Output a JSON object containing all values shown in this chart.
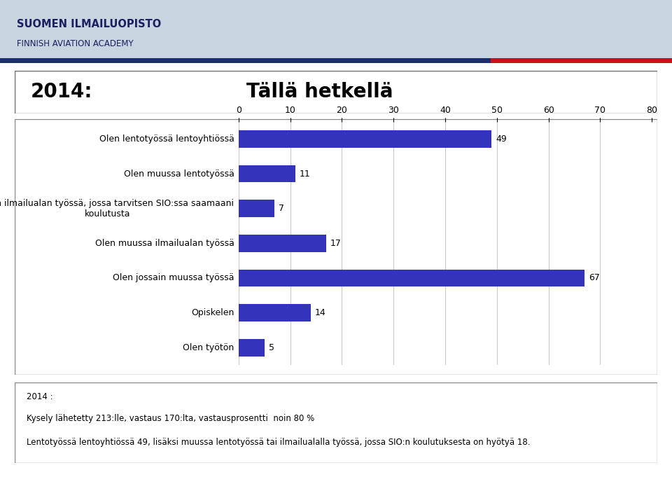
{
  "title_left": "2014:",
  "title_right": "Tällä hetkellä",
  "categories": [
    "Olen lentotyössä lentoyhtiössä",
    "Olen muussa lentotyössä",
    "Olen ilmailualan työssä, jossa tarvitsen SIO:ssa saamaani\nkoulutusta",
    "Olen muussa ilmailualan työssä",
    "Olen jossain muussa työssä",
    "Opiskelen",
    "Olen työtön"
  ],
  "values": [
    49,
    11,
    7,
    17,
    67,
    14,
    5
  ],
  "bar_color": "#3333bb",
  "xlim": [
    0,
    80
  ],
  "xticks": [
    0,
    10,
    20,
    30,
    40,
    50,
    60,
    70,
    80
  ],
  "header_bg": "#c8d4e0",
  "logo_text_line1": "SUOMEN ILMAILUOPISTO",
  "logo_text_line2": "FINNISH AVIATION ACADEMY",
  "footer_line1": "2014 :",
  "footer_line2": "Kysely lähetetty 213:lle, vastaus 170:lta, vastausprosentti  noin 80 %",
  "footer_line3": "Lentotyössä lentoyhtiössä 49, lisäksi muussa lentotyössä tai ilmailualalla työssä, jossa SIO:n koulutuksesta on hyötyä 18.",
  "value_label_fontsize": 9,
  "category_fontsize": 9,
  "bar_height": 0.5,
  "tick_fontsize": 9
}
